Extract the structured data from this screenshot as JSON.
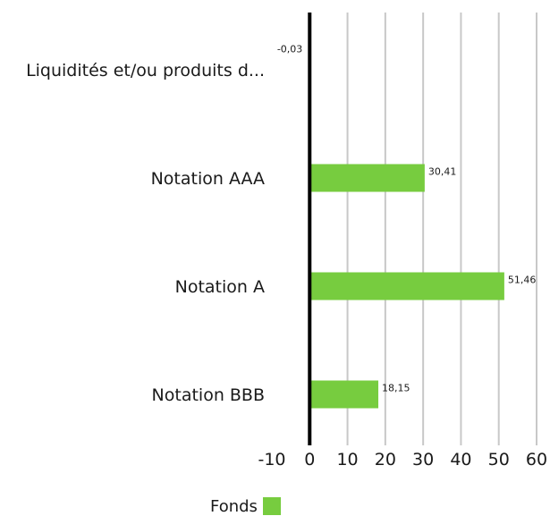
{
  "chart_data": {
    "type": "bar",
    "orientation": "horizontal",
    "categories": [
      "Liquidités et/ou produits d...",
      "Notation AAA",
      "Notation A",
      "Notation BBB"
    ],
    "series": [
      {
        "name": "Fonds",
        "values": [
          -0.03,
          30.41,
          51.46,
          18.15
        ],
        "labels": [
          "-0,03",
          "30,41",
          "51,46",
          "18,15"
        ],
        "color": "#77cc3f"
      }
    ],
    "xlim": [
      -10,
      60
    ],
    "xticks": [
      -10,
      0,
      10,
      20,
      30,
      40,
      50,
      60
    ],
    "xtick_labels": [
      "-10",
      "0",
      "10",
      "20",
      "30",
      "40",
      "50",
      "60"
    ],
    "grid": true,
    "legend_placement": "bottom",
    "colors": {
      "bar": "#77cc3f",
      "grid": "#c8c8c8",
      "zero_axis": "#000000"
    }
  }
}
